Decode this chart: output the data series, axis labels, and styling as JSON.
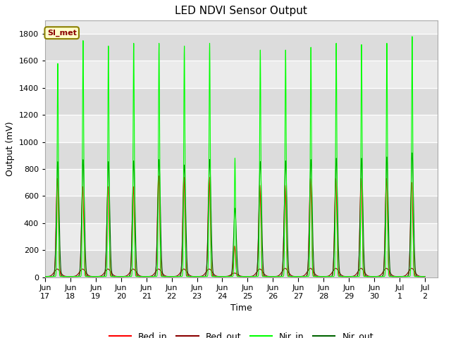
{
  "title": "LED NDVI Sensor Output",
  "xlabel": "Time",
  "ylabel": "Output (mV)",
  "ylim": [
    0,
    1900
  ],
  "yticks": [
    0,
    200,
    400,
    600,
    800,
    1000,
    1200,
    1400,
    1600,
    1800
  ],
  "xtick_positions": [
    0,
    1,
    2,
    3,
    4,
    5,
    6,
    7,
    8,
    9,
    10,
    11,
    12,
    13,
    14,
    15
  ],
  "xtick_labels": [
    "Jun 17",
    "Jun 18",
    "Jun 19",
    "Jun 20",
    "Jun 21",
    "Jun 22",
    "Jun 23",
    "Jun 24",
    "Jun 25",
    "Jun 26",
    "Jun 27",
    "Jun 28",
    "Jun 29",
    "Jun 30",
    "Jul 1",
    "Jul 2"
  ],
  "colors": {
    "Red_in": "#ff0000",
    "Red_out": "#8b0000",
    "Nir_in": "#00ff00",
    "Nir_out": "#006400"
  },
  "background_color": "#dcdcdc",
  "annotation_text": "SI_met",
  "annotation_bg": "#ffffcc",
  "annotation_border": "#8b8000",
  "nir_in_peaks": [
    1580,
    1750,
    1710,
    1730,
    1730,
    1710,
    1730,
    880,
    1680,
    1680,
    1700,
    1730,
    1720,
    1730,
    1780
  ],
  "nir_out_peaks": [
    855,
    870,
    855,
    860,
    870,
    830,
    870,
    510,
    855,
    860,
    870,
    880,
    880,
    890,
    920
  ],
  "red_in_peaks": [
    730,
    670,
    670,
    670,
    750,
    740,
    740,
    230,
    680,
    680,
    730,
    730,
    730,
    730,
    700
  ],
  "red_out_peaks": [
    60,
    60,
    60,
    60,
    60,
    60,
    60,
    30,
    60,
    65,
    65,
    65,
    65,
    65,
    65
  ]
}
